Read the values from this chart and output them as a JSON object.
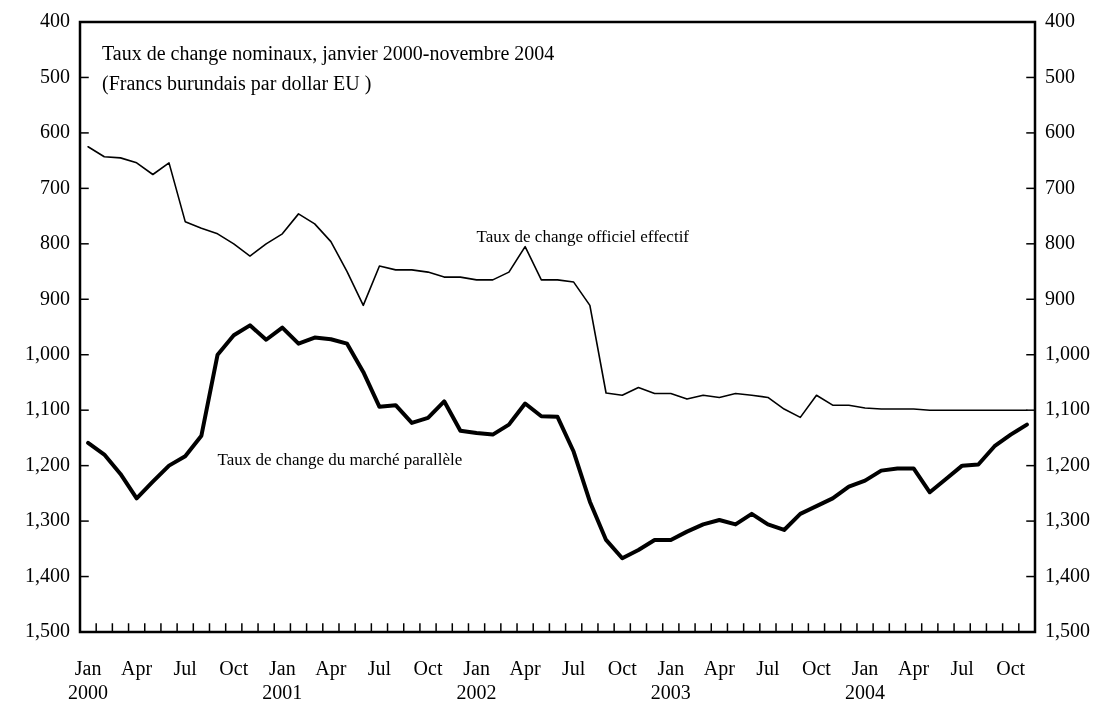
{
  "chart_data": {
    "type": "line",
    "title": "Taux de change nominaux, janvier 2000-novembre 2004",
    "subtitle": "(Francs burundais par dollar EU )",
    "categories": [
      "Jan 2000",
      null,
      null,
      "Apr",
      null,
      null,
      "Jul",
      null,
      null,
      "Oct",
      null,
      null,
      "Jan 2001",
      null,
      null,
      "Apr",
      null,
      null,
      "Jul",
      null,
      null,
      "Oct",
      null,
      null,
      "Jan 2002",
      null,
      null,
      "Apr",
      null,
      null,
      "Jul",
      null,
      null,
      "Oct",
      null,
      null,
      "Jan 2003",
      null,
      null,
      "Apr",
      null,
      null,
      "Jul",
      null,
      null,
      "Oct",
      null,
      null,
      "Jan 2004",
      null,
      null,
      "Apr",
      null,
      null,
      "Jul",
      null,
      null,
      "Oct",
      null
    ],
    "series": [
      {
        "name": "Taux de change officiel effectif",
        "color": "#000000",
        "values": [
          625,
          643,
          645,
          654,
          675,
          654,
          760,
          772,
          782,
          800,
          822,
          800,
          782,
          746,
          764,
          796,
          850,
          911,
          840,
          847,
          847,
          851,
          860,
          860,
          865,
          865,
          851,
          805,
          865,
          865,
          869,
          911,
          1069,
          1073,
          1059,
          1070,
          1070,
          1080,
          1073,
          1077,
          1070,
          1073,
          1077,
          1098,
          1113,
          1073,
          1091,
          1091,
          1096,
          1098,
          1098,
          1098,
          1100,
          1100,
          1100,
          1100,
          1100,
          1100,
          1100
        ]
      },
      {
        "name": "Taux de change du marché parallèle",
        "color": "#000000",
        "values": [
          1159,
          1180,
          1215,
          1259,
          1229,
          1200,
          1183,
          1146,
          1000,
          965,
          947,
          973,
          951,
          980,
          969,
          972,
          980,
          1031,
          1094,
          1091,
          1123,
          1114,
          1084,
          1137,
          1141,
          1144,
          1126,
          1088,
          1111,
          1112,
          1175,
          1265,
          1334,
          1367,
          1352,
          1334,
          1334,
          1319,
          1306,
          1298,
          1306,
          1287,
          1306,
          1316,
          1287,
          1273,
          1259,
          1238,
          1227,
          1209,
          1205,
          1205,
          1248,
          1224,
          1200,
          1198,
          1165,
          1144,
          1126
        ]
      }
    ],
    "ylim": [
      1500,
      400
    ],
    "yticks": [
      400,
      500,
      600,
      700,
      800,
      900,
      {
        "value": 1000,
        "label": "1,000"
      },
      {
        "value": 1100,
        "label": "1,100"
      },
      {
        "value": 1200,
        "label": "1,200"
      },
      {
        "value": 1300,
        "label": "1,300"
      },
      {
        "value": 1400,
        "label": "1,400"
      },
      {
        "value": 1500,
        "label": "1,500"
      }
    ],
    "y2lim": [
      1500,
      400
    ],
    "y2ticks": [
      400,
      500,
      600,
      700,
      800,
      900,
      {
        "value": 1000,
        "label": "1,000"
      },
      {
        "value": 1100,
        "label": "1,100"
      },
      {
        "value": 1200,
        "label": "1,200"
      },
      {
        "value": 1300,
        "label": "1,300"
      },
      {
        "value": 1400,
        "label": "1,400"
      },
      {
        "value": 1500,
        "label": "1,500"
      }
    ],
    "grid": false,
    "legend": false,
    "marker": "none",
    "line_style": "solid"
  }
}
